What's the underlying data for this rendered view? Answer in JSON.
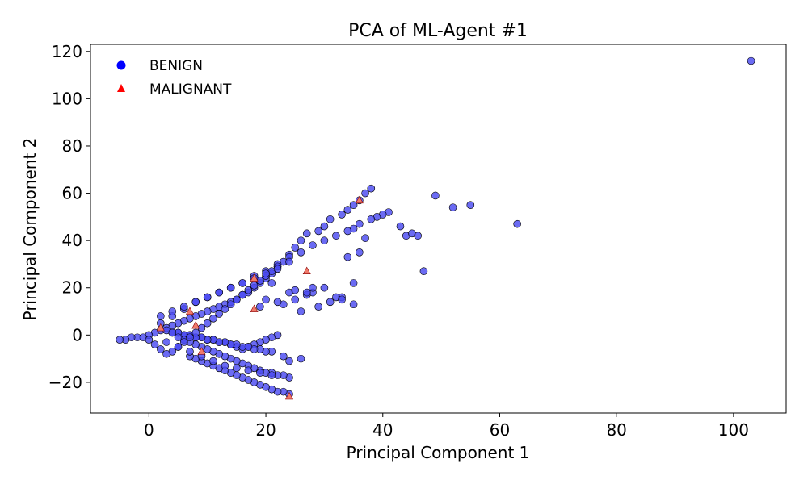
{
  "chart_data": {
    "type": "scatter",
    "title": "PCA of ML-Agent #1",
    "xlabel": "Principal Component 1",
    "ylabel": "Principal Component 2",
    "xlim": [
      -10,
      109
    ],
    "ylim": [
      -33,
      123
    ],
    "xticks": [
      0,
      20,
      40,
      60,
      80,
      100
    ],
    "yticks": [
      -20,
      0,
      20,
      40,
      60,
      80,
      100,
      120
    ],
    "ytick_labels": [
      "−20",
      "0",
      "20",
      "40",
      "60",
      "80",
      "100",
      "120"
    ],
    "grid": false,
    "legend_placement": "top-left",
    "colors": {
      "benign_fill": "#4a4af0",
      "benign_edge": "#000000",
      "malignant_fill": "#f07a6a",
      "malignant_edge": "#8b0000",
      "legend_benign": "#0000ff",
      "legend_malignant": "#ff0000"
    },
    "series": [
      {
        "name": "BENIGN",
        "marker": "circle",
        "x": [
          103,
          38,
          37,
          36,
          35,
          34,
          33,
          31,
          30,
          29,
          27,
          26,
          25,
          24,
          23,
          22,
          21,
          20,
          19,
          18,
          17,
          16,
          15,
          14,
          13,
          12,
          11,
          10,
          9,
          8,
          7,
          6,
          5,
          4,
          3,
          2,
          1,
          0,
          -1,
          -2,
          -3,
          -4,
          -5,
          41,
          40,
          39,
          38,
          36,
          35,
          34,
          32,
          30,
          28,
          26,
          24,
          22,
          20,
          18,
          16,
          14,
          12,
          10,
          8,
          6,
          4,
          2,
          49,
          52,
          55,
          63,
          47,
          44,
          45,
          46,
          43,
          37,
          35,
          36,
          34,
          33,
          30,
          28,
          27,
          24,
          26,
          25,
          23,
          22,
          21,
          20,
          19,
          22,
          21,
          20,
          19,
          18,
          17,
          16,
          15,
          14,
          13,
          12,
          11,
          10,
          9,
          8,
          7,
          6,
          5,
          4,
          3,
          21,
          20,
          19,
          18,
          17,
          16,
          15,
          14,
          13,
          12,
          11,
          10,
          9,
          8,
          7,
          6,
          5,
          4,
          24,
          23,
          22,
          21,
          20,
          19,
          18,
          17,
          16,
          15,
          14,
          13,
          12,
          11,
          10,
          9,
          8,
          7,
          6,
          5,
          24,
          23,
          22,
          21,
          20,
          19,
          18,
          17,
          16,
          15,
          14,
          13,
          12,
          11,
          10,
          9,
          8,
          7,
          26,
          24,
          23,
          29,
          31,
          32,
          27,
          28,
          33,
          35,
          25,
          24,
          22,
          21,
          20,
          19,
          18,
          17,
          16,
          15,
          14,
          13,
          12,
          11,
          10,
          9,
          8,
          7,
          6,
          5,
          4,
          3,
          2,
          1,
          0,
          2,
          4,
          6,
          8,
          10,
          12,
          14,
          16,
          18,
          20,
          22,
          3,
          5,
          7,
          9,
          11,
          13,
          15,
          17,
          19,
          21
        ],
        "y": [
          116,
          62,
          60,
          57,
          55,
          53,
          51,
          49,
          46,
          44,
          43,
          40,
          37,
          34,
          31,
          29,
          26,
          24,
          22,
          20,
          18,
          17,
          15,
          14,
          13,
          12,
          11,
          10,
          9,
          8,
          7,
          6,
          5,
          4,
          3,
          2,
          1,
          0,
          -1,
          -1,
          -1,
          -2,
          -2,
          52,
          51,
          50,
          49,
          47,
          45,
          44,
          42,
          40,
          38,
          35,
          33,
          30,
          27,
          25,
          22,
          20,
          18,
          16,
          14,
          11,
          8,
          5,
          59,
          54,
          55,
          47,
          27,
          42,
          43,
          42,
          46,
          41,
          22,
          35,
          33,
          16,
          20,
          18,
          17,
          18,
          10,
          15,
          13,
          14,
          22,
          15,
          12,
          0,
          -1,
          -2,
          -3,
          -4,
          -5,
          -6,
          -5,
          -4,
          -3,
          -3,
          -2,
          -2,
          -1,
          -1,
          0,
          0,
          1,
          1,
          2,
          -7,
          -7,
          -6,
          -6,
          -5,
          -5,
          -4,
          -4,
          -3,
          -3,
          -2,
          -2,
          -1,
          -1,
          0,
          0,
          1,
          1,
          -18,
          -17,
          -17,
          -16,
          -16,
          -15,
          -14,
          -13,
          -12,
          -11,
          -10,
          -9,
          -8,
          -7,
          -6,
          -5,
          -4,
          -3,
          -2,
          -1,
          -25,
          -24,
          -24,
          -23,
          -22,
          -21,
          -20,
          -19,
          -18,
          -17,
          -16,
          -15,
          -14,
          -13,
          -12,
          -11,
          -10,
          -9,
          -10,
          -11,
          -9,
          12,
          14,
          16,
          18,
          20,
          15,
          13,
          19,
          31,
          29,
          27,
          25,
          23,
          21,
          19,
          17,
          15,
          13,
          11,
          9,
          7,
          5,
          3,
          1,
          -1,
          -3,
          -5,
          -7,
          -8,
          -6,
          -4,
          -2,
          8,
          10,
          12,
          14,
          16,
          18,
          20,
          22,
          24,
          26,
          28,
          -3,
          -5,
          -7,
          -9,
          -11,
          -13,
          -14,
          -15,
          -16,
          -17
        ]
      },
      {
        "name": "MALIGNANT",
        "marker": "triangle",
        "x": [
          36,
          27,
          18,
          7,
          8,
          2,
          24,
          9,
          18
        ],
        "y": [
          57,
          27,
          11,
          10,
          4,
          3,
          -26,
          -7,
          24
        ]
      }
    ]
  }
}
